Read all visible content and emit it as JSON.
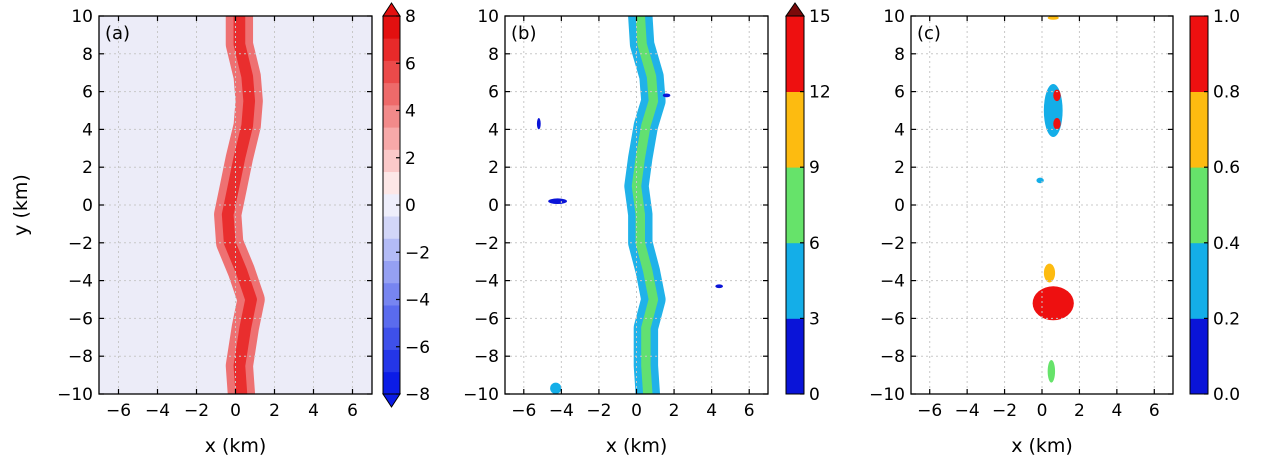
{
  "chart_data": [
    {
      "type": "heatmap",
      "panel_label": "(a)",
      "xlabel": "x (km)",
      "ylabel": "y (km)",
      "xlim": [
        -7,
        7
      ],
      "ylim": [
        -10,
        10
      ],
      "xticks": [
        -6,
        -4,
        -2,
        0,
        2,
        4,
        6
      ],
      "yticks": [
        -10,
        -8,
        -6,
        -4,
        -2,
        0,
        2,
        4,
        6,
        8,
        10
      ],
      "grid": true,
      "background_color": "#ececf8",
      "colorbar": {
        "min": -8,
        "max": 8,
        "ticks": [
          -8,
          -6,
          -4,
          -2,
          0,
          2,
          4,
          6,
          8
        ],
        "tick_labels": [
          "−8",
          "−6",
          "−4",
          "−2",
          "0",
          "2",
          "4",
          "6",
          "8"
        ],
        "extend": "both",
        "colors": [
          "#0b1ce6",
          "#2436e8",
          "#3e50ea",
          "#5a6bee",
          "#7785f0",
          "#95a0f3",
          "#b3bbf6",
          "#d2d6f8",
          "#eeeefb",
          "#fde7e7",
          "#fbc9c9",
          "#f7a9a9",
          "#f28a8a",
          "#ee6a6a",
          "#eb4a4a",
          "#e82a2a",
          "#e31010"
        ],
        "extend_low_color": "#0b1ce6",
        "extend_high_color": "#e31010"
      },
      "features": [
        {
          "kind": "band",
          "x": [
            0.2,
            0.2,
            0.6,
            0.7,
            0.6,
            0.2,
            -0.1,
            -0.4,
            -0.3,
            0.3,
            0.8,
            0.5,
            0.2,
            0.3
          ],
          "y": [
            10,
            8.5,
            6.8,
            5.5,
            4.2,
            2.5,
            1.0,
            -0.5,
            -2.0,
            -3.5,
            -5.0,
            -6.5,
            -8.5,
            -10
          ],
          "width_km": 1.4,
          "value": 5
        },
        {
          "kind": "band",
          "x": [
            0.2,
            0.2,
            0.6,
            0.7,
            0.6,
            0.2,
            -0.1,
            -0.4,
            -0.3,
            0.3,
            0.8,
            0.5,
            0.2,
            0.3
          ],
          "y": [
            10,
            8.5,
            6.8,
            5.5,
            4.2,
            2.5,
            1.0,
            -0.5,
            -2.0,
            -3.5,
            -5.0,
            -6.5,
            -8.5,
            -10
          ],
          "width_km": 0.6,
          "value": 7
        }
      ]
    },
    {
      "type": "heatmap",
      "panel_label": "(b)",
      "xlabel": "x (km)",
      "ylabel": "",
      "xlim": [
        -7,
        7
      ],
      "ylim": [
        -10,
        10
      ],
      "xticks": [
        -6,
        -4,
        -2,
        0,
        2,
        4,
        6
      ],
      "yticks": [
        -10,
        -8,
        -6,
        -4,
        -2,
        0,
        2,
        4,
        6,
        8,
        10
      ],
      "grid": true,
      "background_color": "#ffffff",
      "colorbar": {
        "min": 0,
        "max": 15,
        "ticks": [
          0,
          3,
          6,
          9,
          12,
          15
        ],
        "tick_labels": [
          "0",
          "3",
          "6",
          "9",
          "12",
          "15"
        ],
        "extend": "max",
        "colors": [
          "#0a14d8",
          "#14aee8",
          "#66e36a",
          "#fdbb10",
          "#ee1010"
        ],
        "extend_high_color": "#7a0a0a"
      },
      "features": [
        {
          "kind": "band",
          "x": [
            0.2,
            0.3,
            0.8,
            0.9,
            0.5,
            0.2,
            0.0,
            0.2,
            0.2,
            0.6,
            0.9,
            0.5,
            0.5,
            0.6
          ],
          "y": [
            10,
            8.5,
            6.8,
            5.5,
            4.2,
            2.5,
            1.0,
            -0.5,
            -2.0,
            -3.5,
            -5.0,
            -6.5,
            -8.5,
            -10
          ],
          "width_km": 1.3,
          "value": 4.5
        },
        {
          "kind": "band",
          "x": [
            0.2,
            0.3,
            0.8,
            0.9,
            0.5,
            0.2,
            0.0,
            0.2,
            0.2,
            0.6,
            0.9,
            0.5,
            0.5,
            0.6
          ],
          "y": [
            10,
            8.5,
            6.8,
            5.5,
            4.2,
            2.5,
            1.0,
            -0.5,
            -2.0,
            -3.5,
            -5.0,
            -6.5,
            -8.5,
            -10
          ],
          "width_km": 0.5,
          "value": 7.5
        },
        {
          "kind": "blob",
          "x": -4.2,
          "y": 0.2,
          "rx": 0.5,
          "ry": 0.15,
          "value": 1.5
        },
        {
          "kind": "blob",
          "x": -5.2,
          "y": 4.3,
          "rx": 0.1,
          "ry": 0.3,
          "value": 1.5
        },
        {
          "kind": "blob",
          "x": -4.3,
          "y": -9.7,
          "rx": 0.3,
          "ry": 0.3,
          "value": 4.5
        },
        {
          "kind": "blob",
          "x": 4.4,
          "y": -4.3,
          "rx": 0.2,
          "ry": 0.1,
          "value": 1.5
        },
        {
          "kind": "blob",
          "x": 1.6,
          "y": 5.8,
          "rx": 0.2,
          "ry": 0.1,
          "value": 1.5
        }
      ]
    },
    {
      "type": "heatmap",
      "panel_label": "(c)",
      "xlabel": "x (km)",
      "ylabel": "",
      "xlim": [
        -7,
        7
      ],
      "ylim": [
        -10,
        10
      ],
      "xticks": [
        -6,
        -4,
        -2,
        0,
        2,
        4,
        6
      ],
      "yticks": [
        -10,
        -8,
        -6,
        -4,
        -2,
        0,
        2,
        4,
        6,
        8,
        10
      ],
      "grid": true,
      "background_color": "#ffffff",
      "colorbar": {
        "min": 0.0,
        "max": 1.0,
        "ticks": [
          0.0,
          0.2,
          0.4,
          0.6,
          0.8,
          1.0
        ],
        "tick_labels": [
          "0.0",
          "0.2",
          "0.4",
          "0.6",
          "0.8",
          "1.0"
        ],
        "extend": "neither",
        "colors": [
          "#0a14d8",
          "#14aee8",
          "#66e36a",
          "#fdbb10",
          "#ee1010"
        ]
      },
      "features": [
        {
          "kind": "blob",
          "x": 0.6,
          "y": -5.2,
          "rx": 1.1,
          "ry": 0.9,
          "value": 0.9
        },
        {
          "kind": "blob",
          "x": 0.6,
          "y": 5.0,
          "rx": 0.5,
          "ry": 1.4,
          "value": 0.3
        },
        {
          "kind": "blob",
          "x": 0.8,
          "y": 5.8,
          "rx": 0.2,
          "ry": 0.3,
          "value": 0.9
        },
        {
          "kind": "blob",
          "x": 0.8,
          "y": 4.3,
          "rx": 0.2,
          "ry": 0.3,
          "value": 0.9
        },
        {
          "kind": "blob",
          "x": -0.1,
          "y": 1.3,
          "rx": 0.2,
          "ry": 0.15,
          "value": 0.3
        },
        {
          "kind": "blob",
          "x": 0.6,
          "y": 9.9,
          "rx": 0.3,
          "ry": 0.1,
          "value": 0.7
        },
        {
          "kind": "blob",
          "x": 0.5,
          "y": -8.8,
          "rx": 0.2,
          "ry": 0.6,
          "value": 0.5
        },
        {
          "kind": "blob",
          "x": 0.4,
          "y": -3.6,
          "rx": 0.3,
          "ry": 0.5,
          "value": 0.7
        }
      ]
    }
  ]
}
